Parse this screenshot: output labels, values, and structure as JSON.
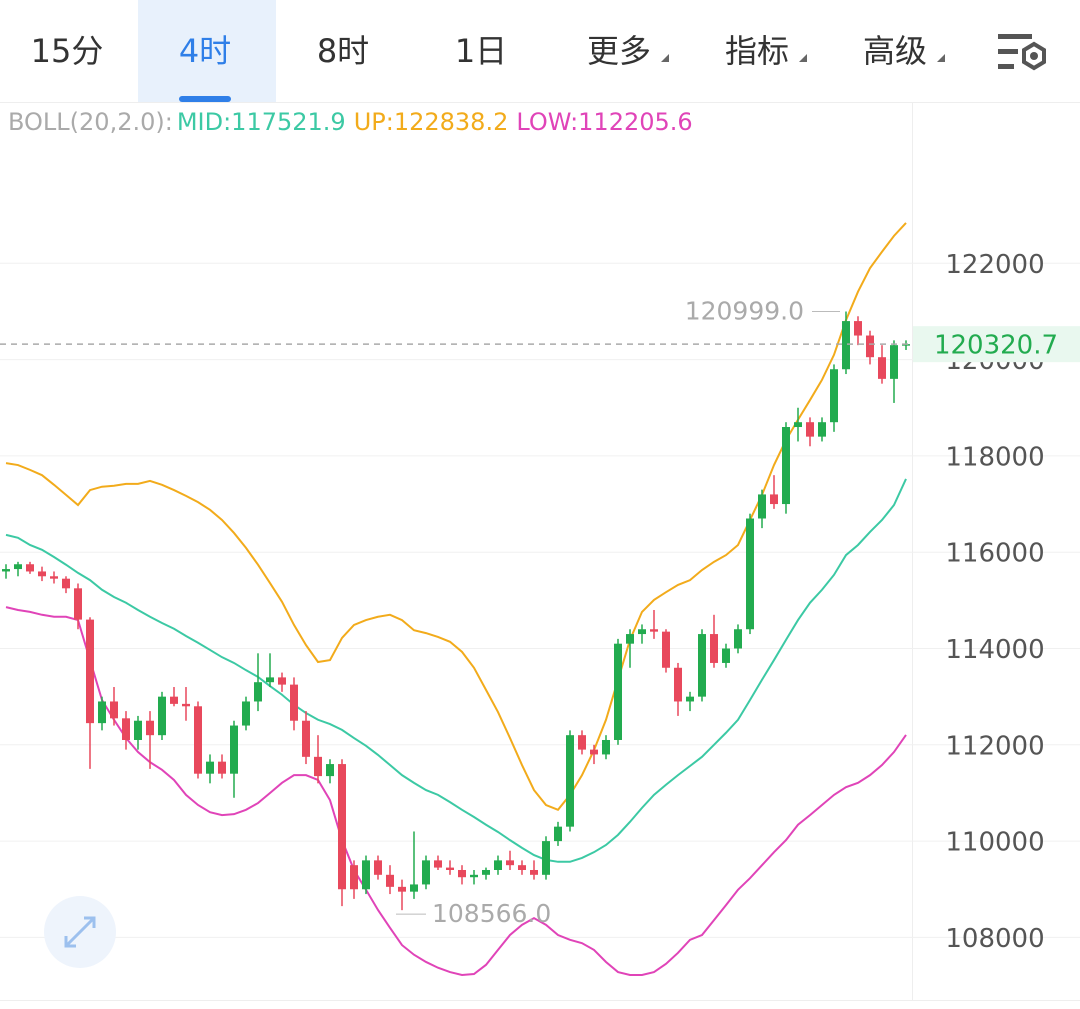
{
  "tabs": [
    {
      "label": "15分",
      "active": false,
      "menu": false
    },
    {
      "label": "4时",
      "active": true,
      "menu": false
    },
    {
      "label": "8时",
      "active": false,
      "menu": false
    },
    {
      "label": "1日",
      "active": false,
      "menu": false
    },
    {
      "label": "更多",
      "active": false,
      "menu": true
    },
    {
      "label": "指标",
      "active": false,
      "menu": true
    },
    {
      "label": "高级",
      "active": false,
      "menu": true
    }
  ],
  "chart_data": {
    "type": "candlestick",
    "indicator": "BOLL(20,2.0):",
    "ylim": [
      106700,
      125350
    ],
    "yticks": [
      108000,
      110000,
      112000,
      114000,
      116000,
      118000,
      120000,
      122000
    ],
    "grid": true,
    "up_color": "#22ab4f",
    "down_color": "#e8485c",
    "last_price": 120320.7,
    "annotations": [
      {
        "value": 120999,
        "label": "120999.0"
      },
      {
        "value": 108566,
        "label": "108566.0"
      }
    ],
    "open": [
      115600,
      115650,
      115750,
      115600,
      115500,
      115450,
      115250,
      114600,
      112450,
      112900,
      112550,
      112100,
      112500,
      112200,
      113000,
      112850,
      112800,
      111400,
      111650,
      111400,
      112400,
      112900,
      113300,
      113400,
      113250,
      112500,
      111750,
      111350,
      111600,
      109500,
      109000,
      109600,
      109300,
      109050,
      108950,
      109100,
      109600,
      109450,
      109400,
      109250,
      109300,
      109400,
      109600,
      109500,
      109400,
      109300,
      110000,
      110300,
      112200,
      111900,
      111800,
      112100,
      114100,
      114300,
      114400,
      114350,
      113600,
      112900,
      113000,
      114300,
      113700,
      114000,
      114400,
      116700,
      117200,
      117000,
      118600,
      118700,
      118400,
      118700,
      119800,
      120800,
      120500,
      120050,
      119600,
      120300
    ],
    "high": [
      115750,
      115800,
      115800,
      115700,
      115600,
      115500,
      115350,
      114650,
      113000,
      113200,
      112700,
      112600,
      112700,
      113100,
      113200,
      113200,
      112900,
      111800,
      111800,
      112500,
      113000,
      113900,
      113900,
      113500,
      113400,
      112700,
      112200,
      111700,
      111700,
      109600,
      109700,
      109700,
      109500,
      109200,
      110200,
      109700,
      109700,
      109600,
      109500,
      109400,
      109450,
      109700,
      109800,
      109600,
      109600,
      110100,
      110400,
      112300,
      112300,
      112000,
      112200,
      114200,
      114400,
      114500,
      114800,
      114400,
      113700,
      113100,
      114400,
      114700,
      114100,
      114500,
      116800,
      117300,
      117600,
      118700,
      119000,
      118800,
      118800,
      119900,
      120999,
      120900,
      120600,
      120300,
      120400,
      120400
    ],
    "low": [
      115450,
      115500,
      115550,
      115400,
      115350,
      115150,
      114400,
      111500,
      112300,
      112400,
      111900,
      111900,
      111500,
      112100,
      112800,
      112500,
      111300,
      111200,
      111300,
      110900,
      112300,
      112700,
      113200,
      113100,
      112300,
      111600,
      111200,
      111200,
      108650,
      108800,
      108900,
      109200,
      108900,
      108566,
      108800,
      109000,
      109400,
      109300,
      109100,
      109100,
      109200,
      109300,
      109400,
      109300,
      109200,
      109200,
      109900,
      110200,
      111800,
      111600,
      111700,
      112000,
      113600,
      114100,
      114200,
      113500,
      112600,
      112700,
      112900,
      113600,
      113600,
      113900,
      114300,
      116500,
      116900,
      116800,
      118300,
      118200,
      118300,
      118500,
      119700,
      120300,
      119900,
      119500,
      119100,
      120200
    ],
    "close": [
      115650,
      115750,
      115600,
      115500,
      115450,
      115250,
      114600,
      112450,
      112900,
      112550,
      112100,
      112500,
      112200,
      113000,
      112850,
      112800,
      111400,
      111650,
      111400,
      112400,
      112900,
      113300,
      113400,
      113250,
      112500,
      111750,
      111350,
      111600,
      109000,
      109000,
      109600,
      109300,
      109050,
      108950,
      109100,
      109600,
      109450,
      109400,
      109250,
      109300,
      109400,
      109600,
      109500,
      109400,
      109300,
      110000,
      110300,
      112200,
      111900,
      111800,
      112100,
      114100,
      114300,
      114400,
      114350,
      113600,
      112900,
      113000,
      114300,
      113700,
      114000,
      114400,
      116700,
      117200,
      117000,
      118600,
      118700,
      118400,
      118700,
      119800,
      120800,
      120500,
      120050,
      119600,
      120300,
      120320.7
    ],
    "series": [
      {
        "name": "MID",
        "label": "MID:117521.9",
        "color": "#3cc9a4",
        "values": [
          116360,
          116300,
          116150,
          116050,
          115900,
          115740,
          115570,
          115420,
          115220,
          115070,
          114950,
          114800,
          114660,
          114530,
          114410,
          114260,
          114120,
          113970,
          113820,
          113700,
          113550,
          113410,
          113220,
          113040,
          112830,
          112660,
          112520,
          112430,
          112310,
          112140,
          111980,
          111790,
          111580,
          111370,
          111210,
          111060,
          110960,
          110810,
          110650,
          110500,
          110340,
          110190,
          110020,
          109860,
          109710,
          109610,
          109570,
          109570,
          109650,
          109770,
          109920,
          110130,
          110400,
          110690,
          110960,
          111170,
          111370,
          111560,
          111750,
          112000,
          112250,
          112520,
          112930,
          113350,
          113760,
          114180,
          114590,
          114950,
          115220,
          115530,
          115940,
          116150,
          116420,
          116670,
          116980,
          117521.9
        ]
      },
      {
        "name": "UP",
        "label": "UP:122838.2",
        "color": "#f2ab1b",
        "values": [
          117850,
          117810,
          117710,
          117600,
          117400,
          117190,
          116980,
          117290,
          117360,
          117380,
          117420,
          117420,
          117480,
          117400,
          117290,
          117170,
          117040,
          116880,
          116670,
          116400,
          116090,
          115740,
          115360,
          114970,
          114490,
          114070,
          113720,
          113760,
          114220,
          114490,
          114590,
          114660,
          114700,
          114590,
          114380,
          114320,
          114240,
          114140,
          113930,
          113600,
          113140,
          112680,
          112140,
          111580,
          111060,
          110750,
          110650,
          110960,
          111370,
          111890,
          112520,
          113350,
          114180,
          114760,
          115010,
          115170,
          115320,
          115420,
          115630,
          115800,
          115940,
          116150,
          116670,
          117190,
          117810,
          118330,
          118750,
          119160,
          119580,
          120100,
          120820,
          121410,
          121900,
          122240,
          122570,
          122838.2
        ]
      },
      {
        "name": "LOW",
        "label": "LOW:112205.6",
        "color": "#e044b8",
        "values": [
          114860,
          114800,
          114760,
          114700,
          114660,
          114660,
          114590,
          113760,
          112930,
          112520,
          112140,
          111850,
          111640,
          111480,
          111270,
          110960,
          110750,
          110600,
          110540,
          110560,
          110650,
          110790,
          111000,
          111210,
          111370,
          111370,
          111270,
          110850,
          110020,
          109400,
          108990,
          108570,
          108200,
          107840,
          107640,
          107490,
          107370,
          107280,
          107220,
          107240,
          107430,
          107740,
          108050,
          108260,
          108400,
          108260,
          108050,
          107950,
          107880,
          107740,
          107490,
          107280,
          107220,
          107220,
          107280,
          107450,
          107680,
          107950,
          108050,
          108360,
          108670,
          108990,
          109230,
          109500,
          109770,
          110020,
          110340,
          110540,
          110750,
          110960,
          111120,
          111210,
          111370,
          111580,
          111850,
          112205.6
        ]
      }
    ]
  }
}
